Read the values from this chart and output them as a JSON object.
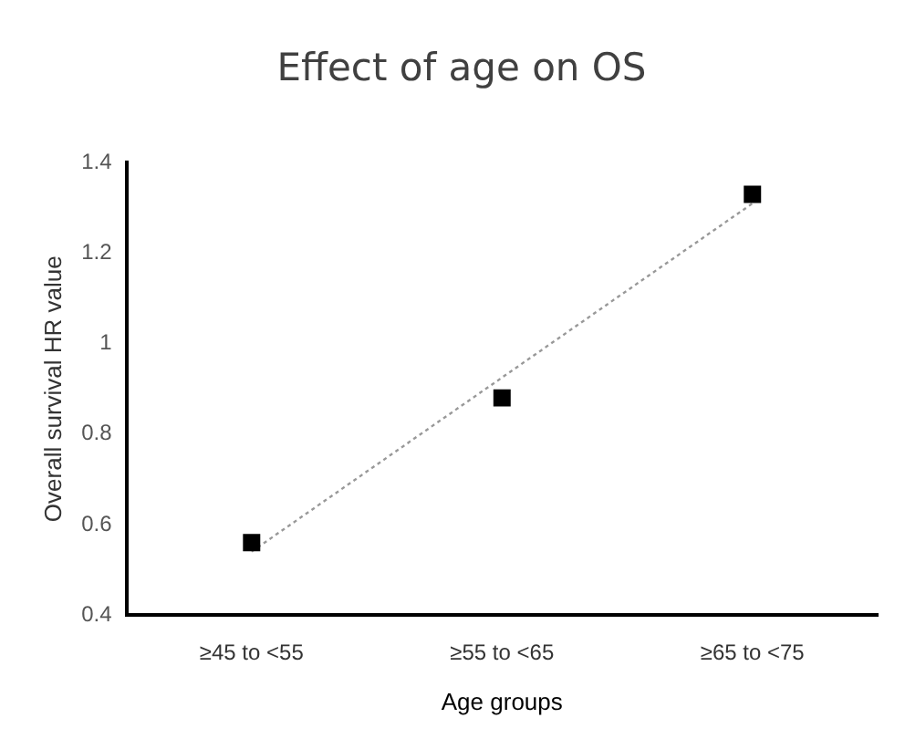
{
  "chart_data": {
    "type": "scatter",
    "title": "Effect of age on OS",
    "xlabel": "Age groups",
    "ylabel": "Overall survival HR value",
    "categories": [
      "≥45 to <55",
      "≥55 to <65",
      "≥65 to <75"
    ],
    "series": [
      {
        "color": "#000000",
        "marker": "square",
        "values": [
          0.56,
          0.88,
          1.33
        ]
      },
      {
        "type": "line",
        "color": "#999999",
        "marker": "none",
        "line_style": "dotted",
        "x": [
          "≥45 to <55",
          "≥65 to <75"
        ],
        "values": [
          0.54,
          1.31
        ]
      }
    ],
    "ylim": [
      0.4,
      1.4
    ],
    "yticks": [
      0.4,
      0.6,
      0.8,
      1,
      1.2,
      1.4
    ],
    "grid": false,
    "legend": false
  }
}
